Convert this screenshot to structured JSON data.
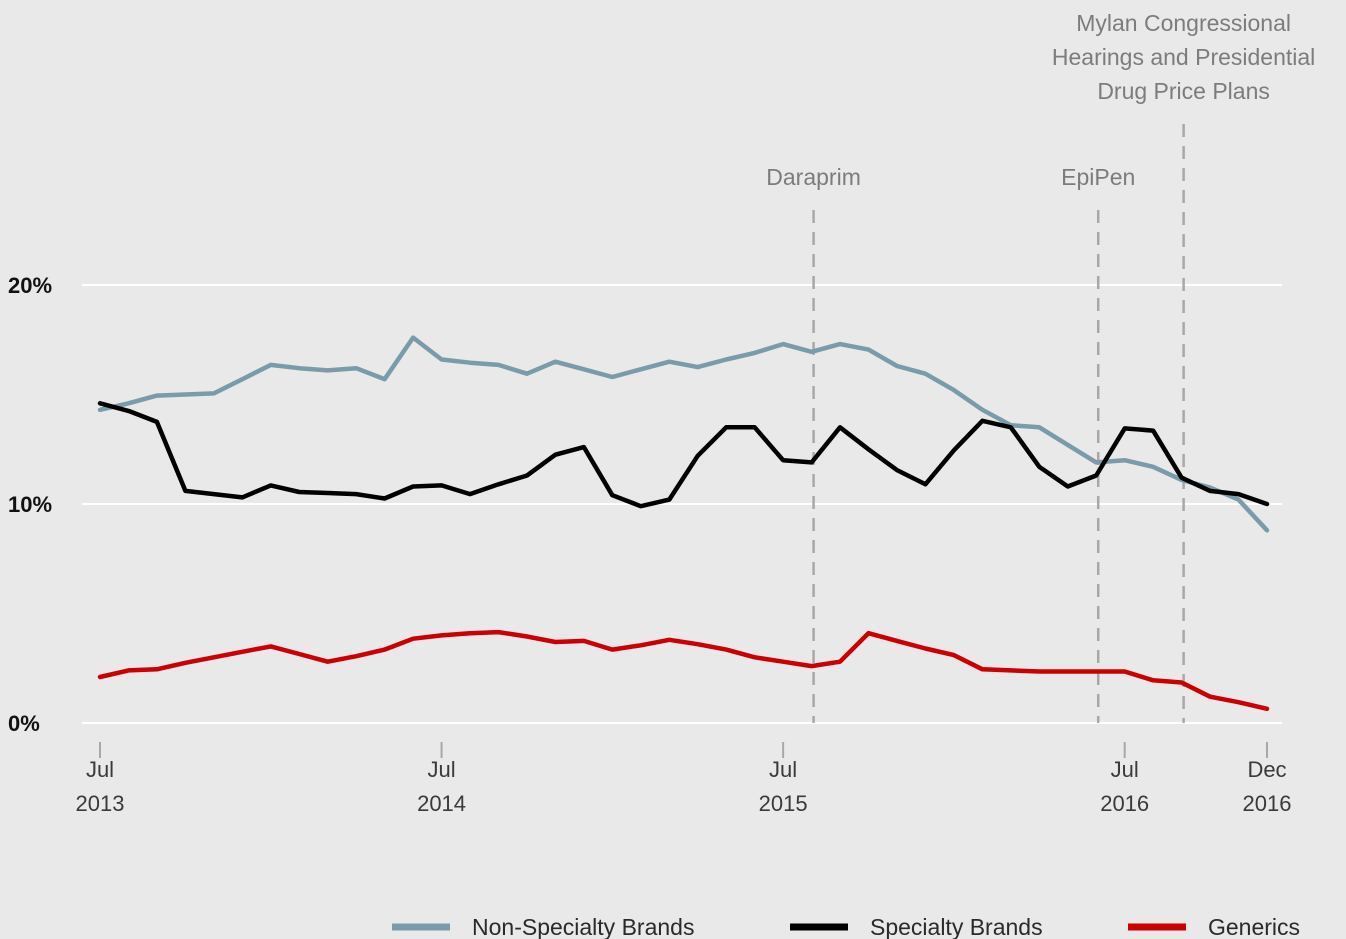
{
  "chart_data": {
    "type": "line",
    "title": "",
    "xlabel": "",
    "ylabel": "",
    "x_range": [
      "2013-07",
      "2016-12"
    ],
    "ylim": [
      0,
      20
    ],
    "y_ticks": [
      {
        "value": 0,
        "label": "0%"
      },
      {
        "value": 10,
        "label": "10%"
      },
      {
        "value": 20,
        "label": "20%"
      }
    ],
    "x_ticks": [
      {
        "date": "2013-07",
        "line1": "Jul",
        "line2": "2013"
      },
      {
        "date": "2014-07",
        "line1": "Jul",
        "line2": "2014"
      },
      {
        "date": "2015-07",
        "line1": "Jul",
        "line2": "2015"
      },
      {
        "date": "2016-07",
        "line1": "Jul",
        "line2": "2016"
      },
      {
        "date": "2016-12",
        "line1": "Dec",
        "line2": "2016"
      }
    ],
    "grid": true,
    "legend_position": "bottom-right",
    "annotations": [
      {
        "date": "2015-08",
        "lines": [
          "Daraprim"
        ]
      },
      {
        "date": "2016-06",
        "lines": [
          "EpiPen"
        ]
      },
      {
        "date": "2016-09",
        "lines": [
          "Mylan Congressional",
          "Hearings and Presidential",
          "Drug Price Plans"
        ]
      }
    ],
    "series": [
      {
        "name": "Non-Specialty Brands",
        "color": "#7a9baa",
        "points": [
          [
            "2013-07",
            14.3
          ],
          [
            "2013-08",
            14.6
          ],
          [
            "2013-09",
            14.95
          ],
          [
            "2013-10",
            15.0
          ],
          [
            "2013-11",
            15.05
          ],
          [
            "2013-12",
            15.7
          ],
          [
            "2014-01",
            16.35
          ],
          [
            "2014-02",
            16.2
          ],
          [
            "2014-03",
            16.1
          ],
          [
            "2014-04",
            16.2
          ],
          [
            "2014-05",
            15.7
          ],
          [
            "2014-06",
            17.6
          ],
          [
            "2014-07",
            16.6
          ],
          [
            "2014-08",
            16.45
          ],
          [
            "2014-09",
            16.35
          ],
          [
            "2014-10",
            15.95
          ],
          [
            "2014-11",
            16.5
          ],
          [
            "2014-12",
            16.15
          ],
          [
            "2015-01",
            15.8
          ],
          [
            "2015-02",
            16.15
          ],
          [
            "2015-03",
            16.5
          ],
          [
            "2015-04",
            16.25
          ],
          [
            "2015-05",
            16.6
          ],
          [
            "2015-06",
            16.9
          ],
          [
            "2015-07",
            17.3
          ],
          [
            "2015-08",
            16.95
          ],
          [
            "2015-09",
            17.3
          ],
          [
            "2015-10",
            17.05
          ],
          [
            "2015-11",
            16.3
          ],
          [
            "2015-12",
            15.95
          ],
          [
            "2016-01",
            15.2
          ],
          [
            "2016-02",
            14.3
          ],
          [
            "2016-03",
            13.6
          ],
          [
            "2016-04",
            13.5
          ],
          [
            "2016-05",
            12.7
          ],
          [
            "2016-06",
            11.9
          ],
          [
            "2016-07",
            12.0
          ],
          [
            "2016-08",
            11.7
          ],
          [
            "2016-09",
            11.1
          ],
          [
            "2016-10",
            10.75
          ],
          [
            "2016-11",
            10.2
          ],
          [
            "2016-12",
            8.8
          ]
        ]
      },
      {
        "name": "Specialty Brands",
        "color": "#000000",
        "points": [
          [
            "2013-07",
            14.6
          ],
          [
            "2013-08",
            14.25
          ],
          [
            "2013-09",
            13.75
          ],
          [
            "2013-10",
            10.6
          ],
          [
            "2013-11",
            10.45
          ],
          [
            "2013-12",
            10.3
          ],
          [
            "2014-01",
            10.85
          ],
          [
            "2014-02",
            10.55
          ],
          [
            "2014-03",
            10.5
          ],
          [
            "2014-04",
            10.45
          ],
          [
            "2014-05",
            10.25
          ],
          [
            "2014-06",
            10.8
          ],
          [
            "2014-07",
            10.85
          ],
          [
            "2014-08",
            10.45
          ],
          [
            "2014-09",
            10.9
          ],
          [
            "2014-10",
            11.3
          ],
          [
            "2014-11",
            12.25
          ],
          [
            "2014-12",
            12.6
          ],
          [
            "2015-01",
            10.4
          ],
          [
            "2015-02",
            9.9
          ],
          [
            "2015-03",
            10.2
          ],
          [
            "2015-04",
            12.2
          ],
          [
            "2015-05",
            13.5
          ],
          [
            "2015-06",
            13.5
          ],
          [
            "2015-07",
            12.0
          ],
          [
            "2015-08",
            11.9
          ],
          [
            "2015-09",
            13.5
          ],
          [
            "2015-10",
            12.5
          ],
          [
            "2015-11",
            11.55
          ],
          [
            "2015-12",
            10.9
          ],
          [
            "2016-01",
            12.45
          ],
          [
            "2016-02",
            13.8
          ],
          [
            "2016-03",
            13.5
          ],
          [
            "2016-04",
            11.7
          ],
          [
            "2016-05",
            10.8
          ],
          [
            "2016-06",
            11.3
          ],
          [
            "2016-07",
            13.45
          ],
          [
            "2016-08",
            13.35
          ],
          [
            "2016-09",
            11.2
          ],
          [
            "2016-10",
            10.6
          ],
          [
            "2016-11",
            10.45
          ],
          [
            "2016-12",
            10.0
          ]
        ]
      },
      {
        "name": "Generics",
        "color": "#cc0000",
        "points": [
          [
            "2013-07",
            2.1
          ],
          [
            "2013-08",
            2.4
          ],
          [
            "2013-09",
            2.45
          ],
          [
            "2013-10",
            2.75
          ],
          [
            "2013-11",
            3.0
          ],
          [
            "2013-12",
            3.25
          ],
          [
            "2014-01",
            3.5
          ],
          [
            "2014-02",
            3.15
          ],
          [
            "2014-03",
            2.8
          ],
          [
            "2014-04",
            3.05
          ],
          [
            "2014-05",
            3.35
          ],
          [
            "2014-06",
            3.85
          ],
          [
            "2014-07",
            4.0
          ],
          [
            "2014-08",
            4.1
          ],
          [
            "2014-09",
            4.15
          ],
          [
            "2014-10",
            3.95
          ],
          [
            "2014-11",
            3.7
          ],
          [
            "2014-12",
            3.75
          ],
          [
            "2015-01",
            3.35
          ],
          [
            "2015-02",
            3.55
          ],
          [
            "2015-03",
            3.8
          ],
          [
            "2015-04",
            3.6
          ],
          [
            "2015-05",
            3.35
          ],
          [
            "2015-06",
            3.0
          ],
          [
            "2015-07",
            2.8
          ],
          [
            "2015-08",
            2.6
          ],
          [
            "2015-09",
            2.8
          ],
          [
            "2015-10",
            4.1
          ],
          [
            "2015-11",
            3.75
          ],
          [
            "2015-12",
            3.4
          ],
          [
            "2016-01",
            3.1
          ],
          [
            "2016-02",
            2.45
          ],
          [
            "2016-03",
            2.4
          ],
          [
            "2016-04",
            2.35
          ],
          [
            "2016-05",
            2.35
          ],
          [
            "2016-06",
            2.35
          ],
          [
            "2016-07",
            2.35
          ],
          [
            "2016-08",
            1.95
          ],
          [
            "2016-09",
            1.85
          ],
          [
            "2016-10",
            1.2
          ],
          [
            "2016-11",
            0.95
          ],
          [
            "2016-12",
            0.65
          ]
        ]
      }
    ]
  }
}
